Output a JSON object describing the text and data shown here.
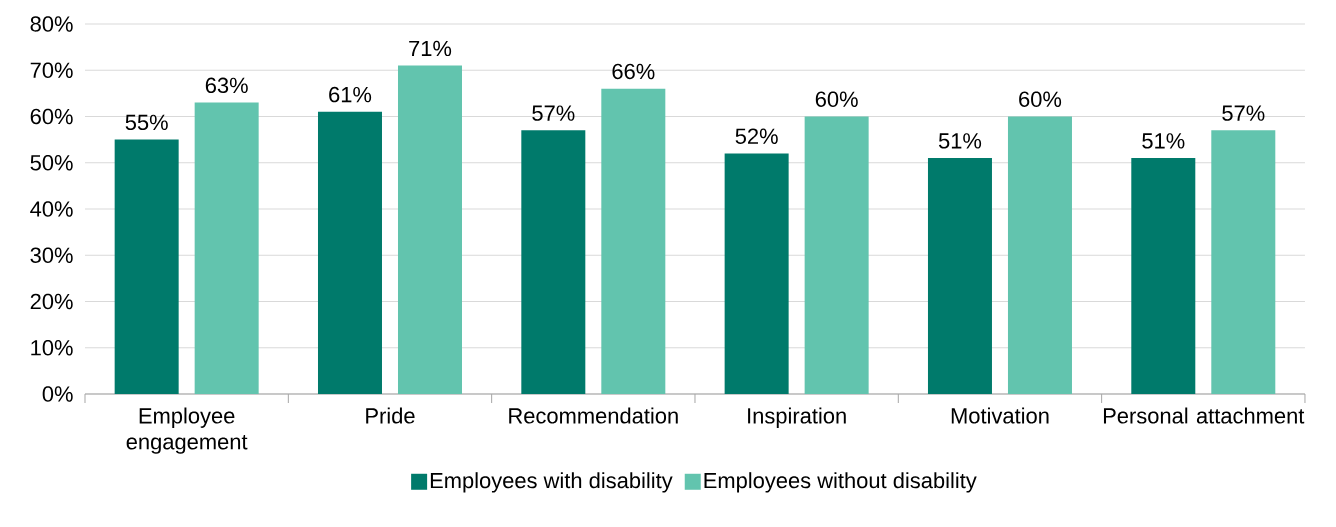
{
  "chart_data": {
    "type": "bar",
    "categories": [
      "Employee engagement",
      "Pride",
      "Recommendation",
      "Inspiration",
      "Motivation",
      "Personal attachment"
    ],
    "series": [
      {
        "name": "Employees with disability",
        "color": "#007a6b",
        "values": [
          55,
          61,
          57,
          52,
          51,
          51
        ],
        "value_labels": [
          "55%",
          "61%",
          "57%",
          "52%",
          "51%",
          "51%"
        ]
      },
      {
        "name": "Employees without disability",
        "color": "#62c4ae",
        "values": [
          63,
          71,
          66,
          60,
          60,
          57
        ],
        "value_labels": [
          "63%",
          "71%",
          "66%",
          "60%",
          "60%",
          "57%"
        ]
      }
    ],
    "ylim": [
      0,
      80
    ],
    "yticks": [
      {
        "value": 0,
        "label": "0%"
      },
      {
        "value": 10,
        "label": "10%"
      },
      {
        "value": 20,
        "label": "20%"
      },
      {
        "value": 30,
        "label": "30%"
      },
      {
        "value": 40,
        "label": "40%"
      },
      {
        "value": 50,
        "label": "50%"
      },
      {
        "value": 60,
        "label": "60%"
      },
      {
        "value": 70,
        "label": "70%"
      },
      {
        "value": 80,
        "label": "80%"
      }
    ],
    "grid": "y",
    "legend": "bottom"
  }
}
